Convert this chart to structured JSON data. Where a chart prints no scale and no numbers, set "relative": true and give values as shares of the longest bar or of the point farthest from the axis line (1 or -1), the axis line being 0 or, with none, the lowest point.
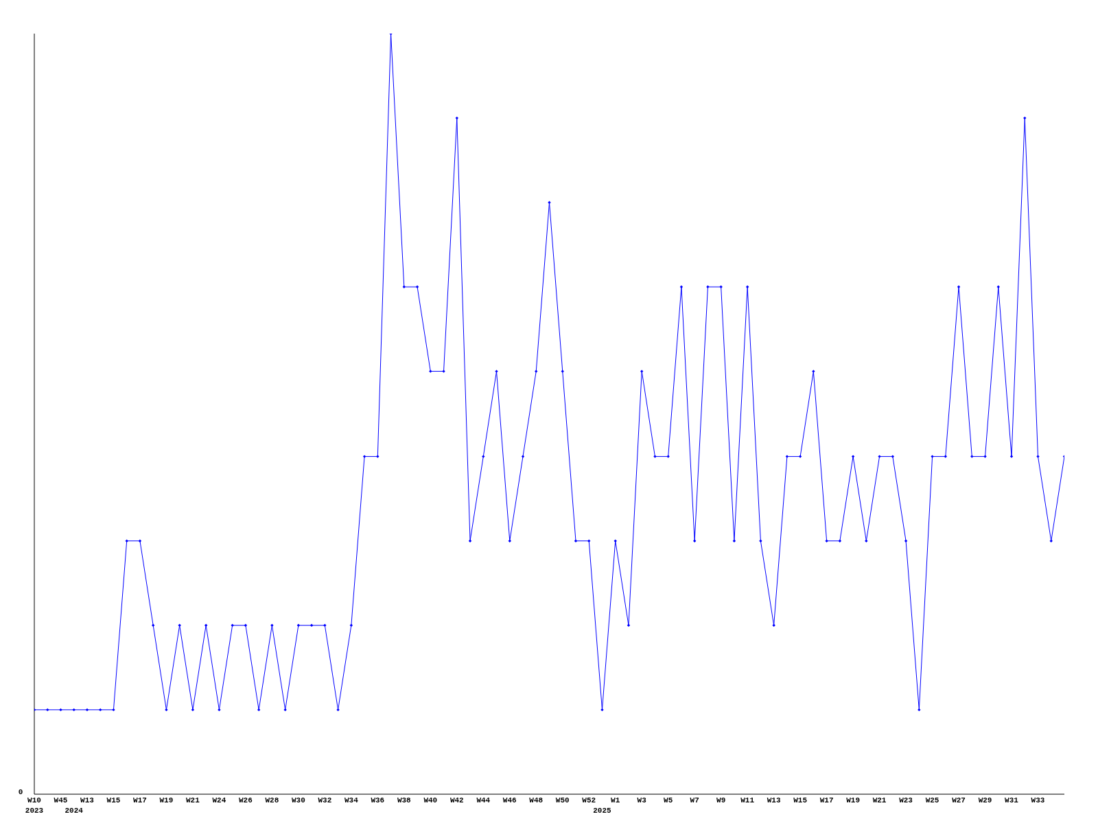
{
  "chart_data": {
    "type": "line",
    "relative": true,
    "annotations": [
      "0"
    ],
    "marker": "diamond",
    "categories": [
      "W10\n2023",
      null,
      "W45",
      "\n2024",
      "W13",
      null,
      "W15",
      null,
      "W17",
      null,
      "W19",
      null,
      "W21",
      null,
      "W24",
      null,
      "W26",
      null,
      "W28",
      null,
      "W30",
      null,
      "W32",
      null,
      "W34",
      null,
      "W36",
      null,
      "W38",
      null,
      "W40",
      null,
      "W42",
      null,
      "W44",
      null,
      "W46",
      null,
      "W48",
      null,
      "W50",
      null,
      "W52",
      "\n2025",
      "W1",
      null,
      "W3",
      null,
      "W5",
      null,
      "W7",
      null,
      "W9",
      null,
      "W11",
      null,
      "W13",
      null,
      "W15",
      null,
      "W17",
      null,
      "W19",
      null,
      "W21",
      null,
      "W23",
      null,
      "W25",
      null,
      "W27",
      null,
      "W29",
      null,
      "W31",
      null,
      "W33",
      null,
      null
    ],
    "series": [
      {
        "color": "#0000ff",
        "values": [
          0.111,
          0.111,
          0.111,
          0.111,
          0.111,
          0.111,
          0.111,
          0.333,
          0.333,
          0.222,
          0.111,
          0.222,
          0.111,
          0.222,
          0.111,
          0.222,
          0.222,
          0.111,
          0.222,
          0.111,
          0.222,
          0.222,
          0.222,
          0.111,
          0.222,
          0.444,
          0.444,
          1,
          0.667,
          0.667,
          0.556,
          0.556,
          0.889,
          0.333,
          0.444,
          0.556,
          0.333,
          0.444,
          0.556,
          0.778,
          0.556,
          0.333,
          0.333,
          0.111,
          0.333,
          0.222,
          0.556,
          0.444,
          0.444,
          0.667,
          0.333,
          0.667,
          0.667,
          0.333,
          0.667,
          0.333,
          0.222,
          0.444,
          0.444,
          0.556,
          0.333,
          0.333,
          0.444,
          0.333,
          0.444,
          0.444,
          0.333,
          0.111,
          0.444,
          0.444,
          0.667,
          0.444,
          0.444,
          0.667,
          0.444,
          0.889,
          0.444,
          0.333,
          0.444
        ]
      }
    ]
  }
}
